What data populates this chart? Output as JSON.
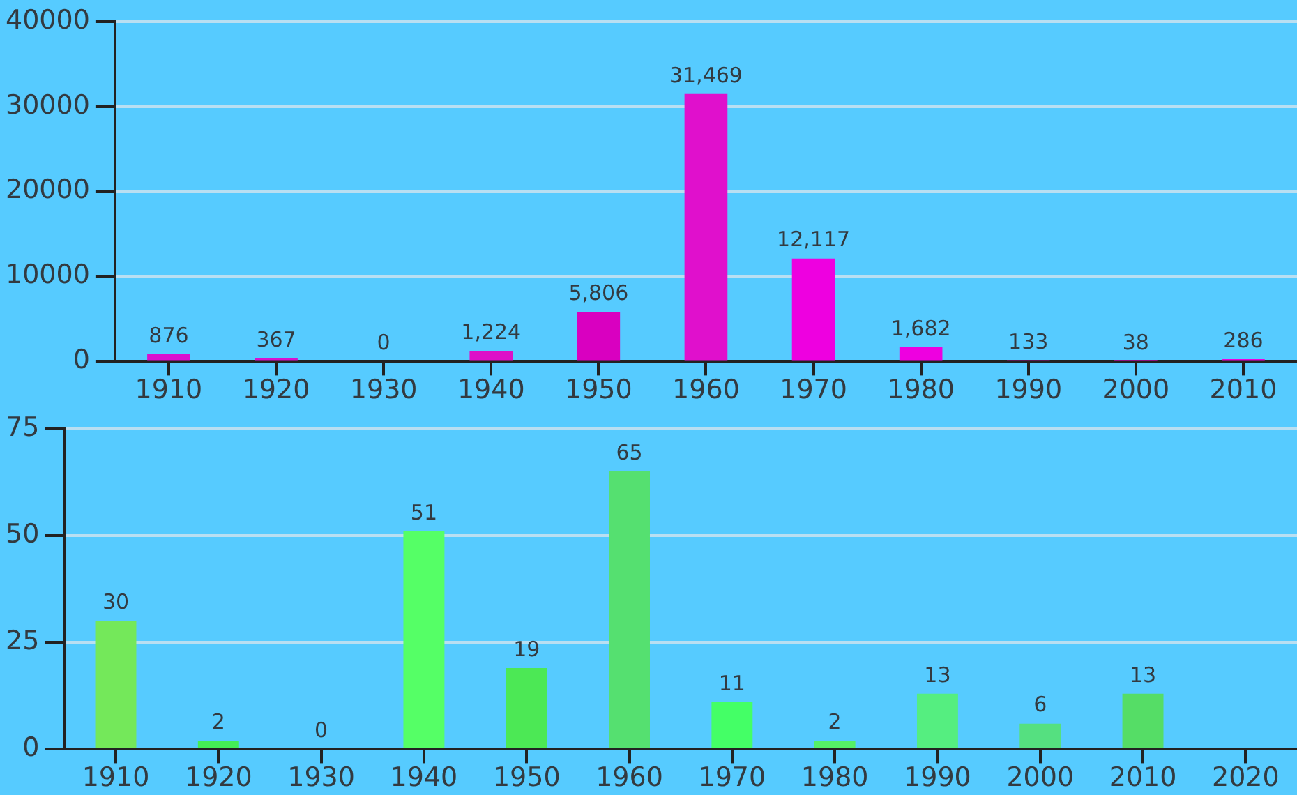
{
  "chart_data": [
    {
      "type": "bar",
      "categories": [
        "1910",
        "1920",
        "1930",
        "1940",
        "1950",
        "1960",
        "1970",
        "1980",
        "1990",
        "2000",
        "2010"
      ],
      "values": [
        876,
        367,
        0,
        1224,
        5806,
        31469,
        12117,
        1682,
        133,
        38,
        286
      ],
      "colors": [
        "#d90fcf",
        "#d90fcf",
        "#d90fcf",
        "#dd10c8",
        "#d900c0",
        "#e010cc",
        "#ee00e0",
        "#ee00e0",
        "#ee00e0",
        "#ee00e0",
        "#ee00e0"
      ],
      "value_labels": [
        "876",
        "367",
        "0",
        "1,224",
        "5,806",
        "31,469",
        "12,117",
        "1,682",
        "133",
        "38",
        "286"
      ],
      "ylim": [
        0,
        40000
      ],
      "yticks": [
        0,
        10000,
        20000,
        30000,
        40000
      ],
      "grid": "y"
    },
    {
      "type": "bar",
      "categories": [
        "1910",
        "1920",
        "1930",
        "1940",
        "1950",
        "1960",
        "1970",
        "1980",
        "1990",
        "2000",
        "2010",
        "2020"
      ],
      "values": [
        30,
        2,
        0,
        51,
        19,
        65,
        11,
        2,
        13,
        6,
        13,
        null
      ],
      "colors": [
        "#74e85a",
        "#44ee55",
        "#44ee55",
        "#55ff66",
        "#4ce855",
        "#55e070",
        "#44ff66",
        "#55f066",
        "#55ee80",
        "#55e080",
        "#55dd66",
        "#55dd66"
      ],
      "data_labels": true,
      "ylim": [
        0,
        75
      ],
      "yticks": [
        0,
        25,
        50,
        75
      ],
      "grid": "y"
    }
  ]
}
